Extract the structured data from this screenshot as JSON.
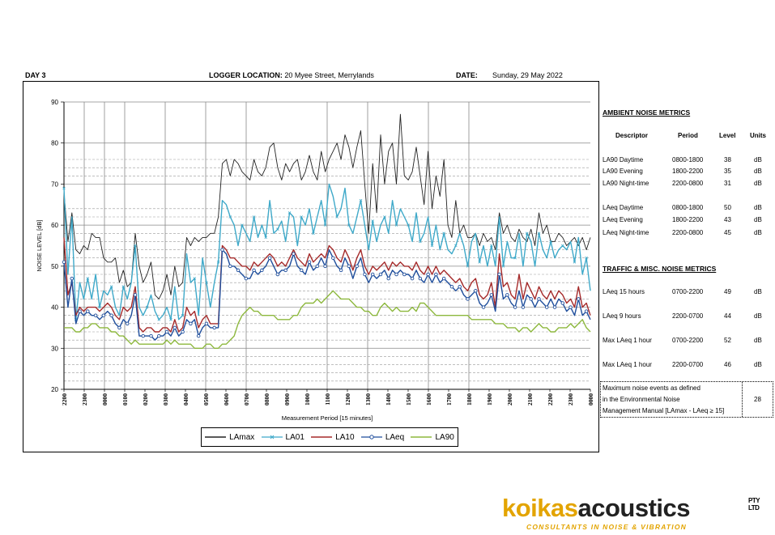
{
  "header": {
    "day": "DAY 3",
    "location_label": "LOGGER LOCATION:",
    "location_value": "20 Myee Street, Merrylands",
    "date_label": "DATE:",
    "date_value": "Sunday, 29 May 2022"
  },
  "ambient": {
    "title": "AMBIENT NOISE METRICS",
    "columns": [
      "Descriptor",
      "Period",
      "Level",
      "Units"
    ],
    "rows": [
      {
        "descriptor": "LA90 Daytime",
        "period": "0800-1800",
        "level": "38",
        "units": "dB"
      },
      {
        "descriptor": "LA90 Evening",
        "period": "1800-2200",
        "level": "35",
        "units": "dB"
      },
      {
        "descriptor": "LA90 Night-time",
        "period": "2200-0800",
        "level": "31",
        "units": "dB"
      },
      {
        "descriptor": "LAeq Daytime",
        "period": "0800-1800",
        "level": "50",
        "units": "dB"
      },
      {
        "descriptor": "LAeq Evening",
        "period": "1800-2200",
        "level": "43",
        "units": "dB"
      },
      {
        "descriptor": "LAeq Night-time",
        "period": "2200-0800",
        "level": "45",
        "units": "dB"
      }
    ]
  },
  "traffic": {
    "title": "TRAFFIC & MISC. NOISE METRICS",
    "rows": [
      {
        "descriptor": "LAeq 15 hours",
        "period": "0700-2200",
        "level": "49",
        "units": "dB"
      },
      {
        "descriptor": "LAeq 9 hours",
        "period": "2200-0700",
        "level": "44",
        "units": "dB"
      },
      {
        "descriptor": "Max LAeq 1 hour",
        "period": "0700-2200",
        "level": "52",
        "units": "dB"
      },
      {
        "descriptor": "Max LAeq 1 hour",
        "period": "2200-0700",
        "level": "46",
        "units": "dB"
      }
    ]
  },
  "max_events": {
    "line1": "Maximum noise events as defined",
    "line2": "in the Environmental Noise",
    "line3": "Management Manual [LAmax - LAeq ≥ 15]",
    "value": "28"
  },
  "logo": {
    "part1": "koikas",
    "part2": "acoustics",
    "pty": "PTY",
    "ltd": "LTD",
    "tagline": "CONSULTANTS IN NOISE & VIBRATION"
  },
  "colors": {
    "LAmax": "#222222",
    "LA01": "#3fa9c9",
    "LA10": "#a52a2a",
    "LAeq": "#1f4e9c",
    "LA90": "#8db83d",
    "logo_accent": "#e3a400"
  },
  "chart_data": {
    "type": "line",
    "ylabel": "NOISE LEVEL [dB]",
    "xlabel": "Measurement Period [15 minutes]",
    "ylim": [
      20,
      90
    ],
    "yticks": [
      20,
      30,
      40,
      50,
      60,
      70,
      80,
      90
    ],
    "xtick_labels": [
      "2200",
      "2300",
      "0000",
      "0100",
      "0200",
      "0300",
      "0400",
      "0500",
      "0600",
      "0700",
      "0800",
      "0900",
      "1000",
      "1100",
      "1200",
      "1300",
      "1400",
      "1500",
      "1600",
      "1700",
      "1800",
      "1900",
      "2000",
      "2100",
      "2200",
      "2300",
      "0000"
    ],
    "reference_lines": [
      22,
      24,
      26,
      28,
      32,
      34,
      36,
      38,
      42,
      44,
      46,
      48,
      52,
      54,
      56,
      58,
      62,
      64,
      72,
      74,
      76
    ],
    "hour_marker_lines": [
      "0000",
      "0100",
      "0300",
      "0500",
      "0700",
      "1100",
      "1300",
      "1600",
      "1800",
      "2300"
    ],
    "grid": true,
    "legend_position": "bottom",
    "series": [
      {
        "name": "LAmax",
        "marker": "none",
        "values": [
          68,
          56,
          63,
          54,
          53,
          55,
          54,
          58,
          57,
          57,
          52,
          51,
          51,
          52,
          46,
          49,
          45,
          46,
          58,
          50,
          46,
          48,
          51,
          43,
          42,
          44,
          48,
          43,
          50,
          45,
          46,
          57,
          55,
          57,
          56,
          57,
          57,
          58,
          58,
          62,
          75,
          76,
          72,
          76,
          75,
          73,
          72,
          71,
          76,
          73,
          72,
          74,
          79,
          80,
          74,
          71,
          75,
          73,
          75,
          76,
          71,
          73,
          77,
          73,
          71,
          78,
          73,
          76,
          78,
          80,
          76,
          82,
          79,
          74,
          79,
          83,
          70,
          58,
          75,
          63,
          82,
          70,
          78,
          80,
          70,
          87,
          72,
          71,
          73,
          79,
          72,
          65,
          78,
          64,
          72,
          67,
          76,
          60,
          57,
          66,
          58,
          60,
          57,
          57,
          58,
          55,
          58,
          56,
          57,
          54,
          63,
          58,
          60,
          57,
          56,
          59,
          57,
          56,
          59,
          55,
          63,
          58,
          60,
          56,
          56,
          58,
          57,
          55,
          56,
          57,
          55,
          57,
          54,
          57
        ]
      },
      {
        "name": "LA01",
        "marker": "x",
        "values": [
          69,
          48,
          62,
          37,
          46,
          42,
          47,
          42,
          48,
          40,
          44,
          43,
          45,
          40,
          38,
          45,
          42,
          46,
          55,
          40,
          38,
          40,
          43,
          39,
          37,
          38,
          40,
          37,
          45,
          37,
          38,
          53,
          46,
          47,
          38,
          52,
          46,
          40,
          46,
          51,
          66,
          65,
          62,
          60,
          55,
          60,
          58,
          56,
          62,
          57,
          60,
          57,
          66,
          58,
          59,
          61,
          56,
          63,
          62,
          55,
          62,
          60,
          64,
          58,
          62,
          66,
          60,
          70,
          67,
          62,
          64,
          69,
          60,
          58,
          62,
          66,
          60,
          54,
          61,
          56,
          60,
          62,
          58,
          66,
          60,
          64,
          62,
          60,
          56,
          63,
          56,
          58,
          62,
          55,
          60,
          54,
          58,
          54,
          53,
          55,
          58,
          55,
          50,
          56,
          58,
          51,
          55,
          50,
          55,
          50,
          62,
          50,
          56,
          52,
          52,
          58,
          50,
          58,
          56,
          50,
          58,
          54,
          52,
          56,
          52,
          54,
          55,
          54,
          56,
          51,
          57,
          48,
          52,
          44
        ]
      },
      {
        "name": "LA10",
        "marker": "none",
        "values": [
          57,
          43,
          46,
          38,
          40,
          39,
          40,
          40,
          40,
          39,
          40,
          41,
          40,
          38,
          37,
          40,
          39,
          40,
          45,
          35,
          34,
          35,
          35,
          34,
          34,
          35,
          35,
          34,
          37,
          34,
          35,
          40,
          38,
          39,
          35,
          37,
          38,
          36,
          36,
          36,
          55,
          54,
          52,
          52,
          51,
          50,
          50,
          49,
          51,
          50,
          51,
          52,
          53,
          52,
          50,
          51,
          50,
          52,
          54,
          52,
          51,
          50,
          53,
          51,
          52,
          53,
          52,
          55,
          54,
          52,
          51,
          54,
          52,
          49,
          52,
          54,
          50,
          48,
          50,
          49,
          50,
          51,
          49,
          51,
          50,
          51,
          50,
          50,
          49,
          51,
          49,
          48,
          50,
          48,
          50,
          48,
          49,
          48,
          47,
          46,
          47,
          45,
          44,
          46,
          47,
          43,
          42,
          43,
          46,
          40,
          53,
          45,
          46,
          43,
          42,
          48,
          42,
          46,
          44,
          42,
          45,
          43,
          42,
          44,
          42,
          44,
          43,
          41,
          42,
          40,
          45,
          40,
          41,
          38
        ]
      },
      {
        "name": "LAeq",
        "marker": "o",
        "values": [
          51,
          40,
          47,
          36,
          39,
          38,
          39,
          38,
          38,
          37,
          38,
          39,
          38,
          36,
          35,
          37,
          36,
          38,
          43,
          33,
          33,
          33,
          33,
          32,
          33,
          33,
          34,
          33,
          35,
          33,
          34,
          37,
          36,
          37,
          33,
          35,
          36,
          35,
          35,
          35,
          54,
          53,
          50,
          50,
          49,
          48,
          47,
          47,
          49,
          48,
          49,
          50,
          52,
          50,
          48,
          49,
          49,
          50,
          53,
          50,
          49,
          48,
          51,
          49,
          50,
          52,
          50,
          54,
          52,
          50,
          49,
          52,
          50,
          47,
          50,
          52,
          48,
          46,
          48,
          47,
          48,
          49,
          47,
          49,
          48,
          49,
          48,
          48,
          47,
          49,
          47,
          46,
          48,
          46,
          48,
          46,
          47,
          46,
          45,
          44,
          45,
          43,
          42,
          43,
          44,
          41,
          40,
          41,
          43,
          39,
          48,
          42,
          43,
          41,
          40,
          44,
          40,
          43,
          42,
          40,
          42,
          41,
          40,
          42,
          40,
          42,
          41,
          39,
          40,
          38,
          42,
          38,
          39,
          37
        ]
      },
      {
        "name": "LA90",
        "marker": "none",
        "values": [
          35,
          35,
          35,
          34,
          34,
          35,
          35,
          36,
          36,
          35,
          35,
          35,
          34,
          34,
          33,
          33,
          32,
          31,
          32,
          31,
          31,
          31,
          31,
          31,
          31,
          31,
          32,
          31,
          32,
          31,
          31,
          31,
          31,
          30,
          30,
          30,
          31,
          31,
          30,
          30,
          31,
          31,
          32,
          33,
          36,
          38,
          39,
          40,
          39,
          39,
          38,
          38,
          38,
          38,
          37,
          37,
          37,
          37,
          38,
          38,
          40,
          41,
          41,
          41,
          42,
          41,
          42,
          43,
          44,
          43,
          42,
          42,
          42,
          41,
          40,
          40,
          39,
          39,
          38,
          38,
          40,
          41,
          40,
          39,
          40,
          39,
          39,
          39,
          40,
          39,
          41,
          41,
          40,
          39,
          38,
          38,
          38,
          38,
          38,
          38,
          38,
          38,
          38,
          37,
          37,
          37,
          37,
          37,
          37,
          36,
          36,
          36,
          35,
          35,
          35,
          34,
          35,
          35,
          34,
          35,
          36,
          35,
          35,
          34,
          34,
          35,
          35,
          35,
          36,
          35,
          36,
          37,
          35,
          34
        ]
      }
    ]
  }
}
